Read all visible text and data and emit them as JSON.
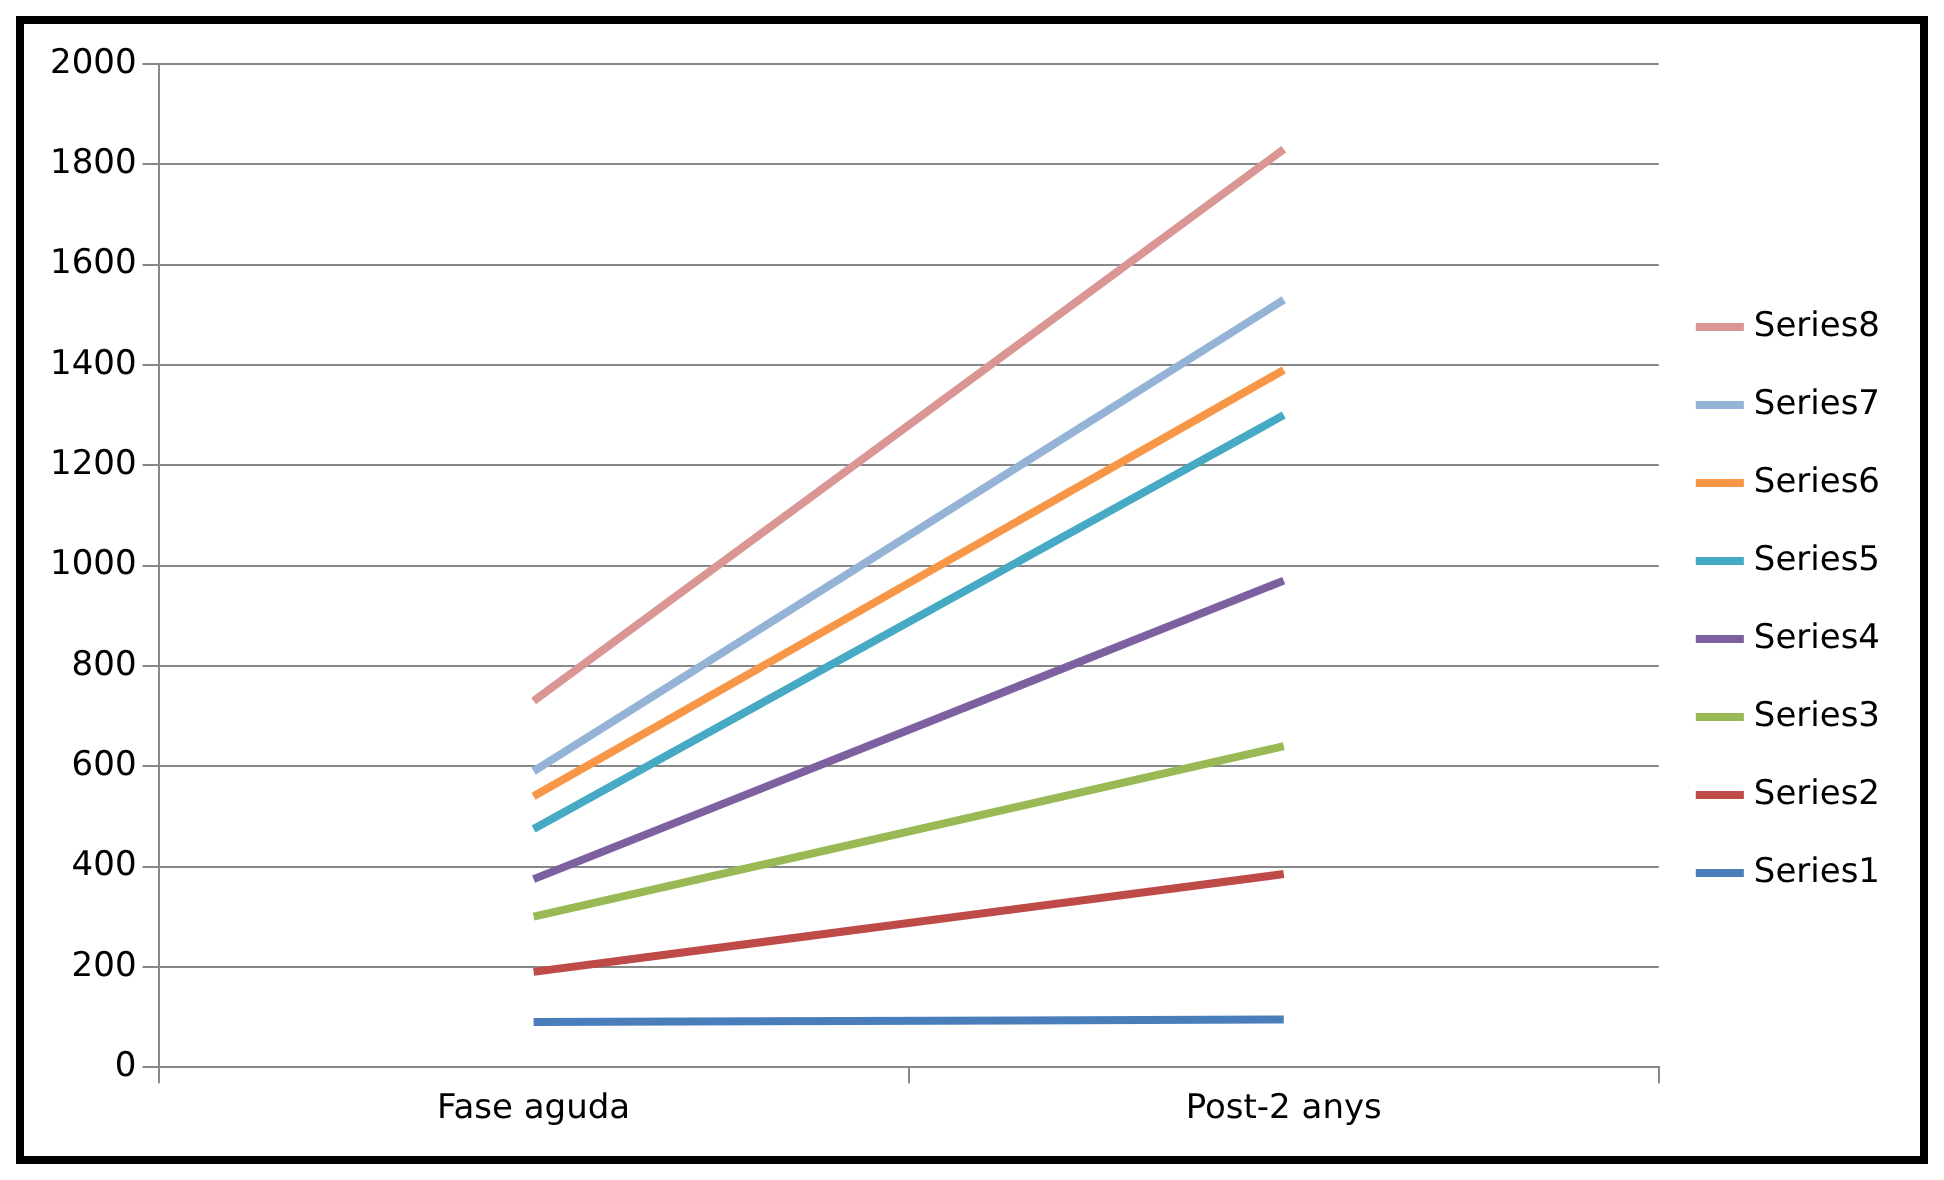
{
  "chart_data": {
    "type": "line",
    "categories": [
      "Fase aguda",
      "Post-2 anys"
    ],
    "series": [
      {
        "name": "Series1",
        "color": "#4a7ebb",
        "values": [
          90,
          95
        ]
      },
      {
        "name": "Series2",
        "color": "#be4b48",
        "values": [
          190,
          385
        ]
      },
      {
        "name": "Series3",
        "color": "#98b954",
        "values": [
          300,
          640
        ]
      },
      {
        "name": "Series4",
        "color": "#7d60a0",
        "values": [
          375,
          970
        ]
      },
      {
        "name": "Series5",
        "color": "#46aac5",
        "values": [
          475,
          1300
        ]
      },
      {
        "name": "Series6",
        "color": "#f79646",
        "values": [
          540,
          1390
        ]
      },
      {
        "name": "Series7",
        "color": "#95b3d7",
        "values": [
          590,
          1530
        ]
      },
      {
        "name": "Series8",
        "color": "#d99694",
        "values": [
          730,
          1830
        ]
      }
    ],
    "ylim": [
      0,
      2000
    ],
    "yticks": [
      0,
      200,
      400,
      600,
      800,
      1000,
      1200,
      1400,
      1600,
      1800,
      2000
    ],
    "grid": "y",
    "legend": "right",
    "marker": "none",
    "line_style": "solid"
  }
}
